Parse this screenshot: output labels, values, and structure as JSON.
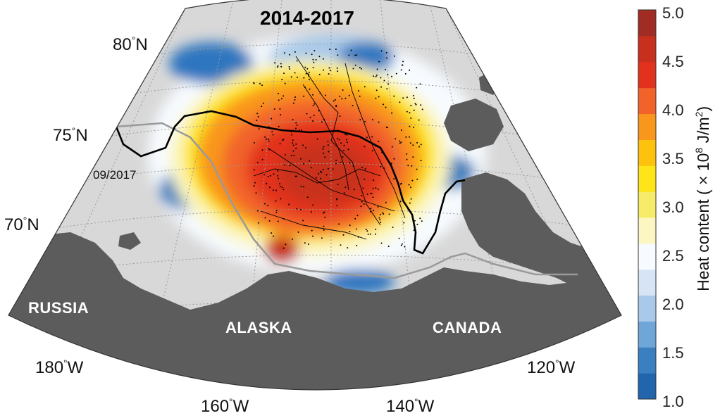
{
  "title": "2014-2017",
  "lat_labels": [
    "80",
    "75",
    "70"
  ],
  "lat_suffix": "N",
  "lon_labels": [
    "180",
    "160",
    "140",
    "120"
  ],
  "lon_suffix": "W",
  "degree_symbol": "°",
  "regions": {
    "russia": "RUSSIA",
    "alaska": "ALASKA",
    "canada": "CANADA"
  },
  "ice_edge_date": "09/2017",
  "colorbar": {
    "label_prefix": "Heat content ( × 10",
    "label_exp": "8",
    "label_unit": " J/m",
    "label_unit_exp": "2",
    "label_suffix": ")",
    "ticks": [
      "5.0",
      "4.5",
      "4.0",
      "3.5",
      "3.0",
      "2.5",
      "2.0",
      "1.5",
      "1.0"
    ],
    "min": 1.0,
    "max": 5.0,
    "colors": [
      "#2166ac",
      "#3a7fc0",
      "#6fa6d8",
      "#a8c9ea",
      "#d6e4f5",
      "#f7fbff",
      "#fbf6c2",
      "#f7ec6a",
      "#fde51a",
      "#fdc20e",
      "#f9961c",
      "#f2632a",
      "#e2321e",
      "#c8301e",
      "#a02c23"
    ]
  },
  "legend_colors": {
    "land": "#5c5c5c",
    "ocean": "#d8d8d8",
    "graticule": "#9a9a9a",
    "ice_edge": "#000000",
    "shelf_contour": "#9a9a9a"
  }
}
